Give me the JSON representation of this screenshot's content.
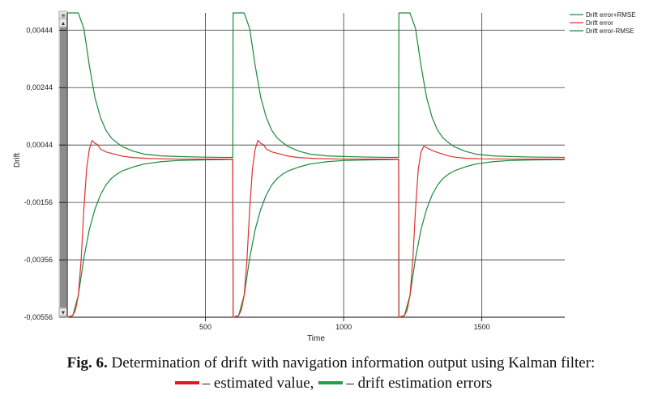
{
  "chart_data": {
    "type": "line",
    "xlabel": "Time",
    "ylabel": "Drift",
    "xlim": [
      0,
      1800
    ],
    "ylim": [
      -0.00556,
      0.00504
    ],
    "x_ticks": [
      500,
      1000,
      1500
    ],
    "x_tick_labels": [
      "500",
      "1000",
      "1500"
    ],
    "y_ticks": [
      0.00444,
      0.00244,
      0.00044,
      -0.00156,
      -0.00356,
      -0.00556
    ],
    "y_tick_labels": [
      "0,00444",
      "0,00244",
      "0,00044",
      "-0,00156",
      "-0,00356",
      "-0,00556"
    ],
    "grid": true,
    "legend_position": "top-right",
    "segment_starts": [
      0,
      600,
      1200
    ],
    "series": [
      {
        "name": "Drift error+RMSE",
        "color": "#1a8a3a",
        "x": [
          0,
          20,
          40,
          60,
          80,
          100,
          120,
          140,
          160,
          180,
          200,
          240,
          280,
          340,
          400,
          480,
          560,
          599,
          600,
          620,
          640,
          660,
          680,
          700,
          720,
          740,
          760,
          780,
          800,
          840,
          880,
          940,
          1000,
          1080,
          1160,
          1199,
          1200,
          1220,
          1240,
          1260,
          1280,
          1300,
          1320,
          1340,
          1360,
          1380,
          1400,
          1440,
          1480,
          1540,
          1600,
          1680,
          1800
        ],
        "y": [
          0.00504,
          0.00504,
          0.00504,
          0.0045,
          0.0032,
          0.0021,
          0.0014,
          0.00095,
          0.00068,
          0.00052,
          0.00038,
          0.00022,
          0.00012,
          6e-05,
          4e-05,
          2e-05,
          1e-05,
          1e-05,
          0.00504,
          0.00504,
          0.00504,
          0.0045,
          0.0032,
          0.0021,
          0.0014,
          0.00095,
          0.00068,
          0.00052,
          0.00038,
          0.00022,
          0.00012,
          6e-05,
          4e-05,
          2e-05,
          1e-05,
          1e-05,
          0.00504,
          0.00504,
          0.00504,
          0.0045,
          0.0032,
          0.0021,
          0.0014,
          0.00095,
          0.00068,
          0.00052,
          0.00038,
          0.00022,
          0.00012,
          6e-05,
          4e-05,
          2e-05,
          1e-05
        ]
      },
      {
        "name": "Drift error",
        "color": "#e03030",
        "x": [
          0,
          20,
          30,
          40,
          50,
          60,
          70,
          80,
          90,
          100,
          110,
          120,
          140,
          160,
          180,
          200,
          240,
          300,
          400,
          500,
          599,
          600,
          620,
          630,
          640,
          650,
          660,
          670,
          680,
          690,
          700,
          710,
          720,
          740,
          760,
          780,
          800,
          840,
          900,
          1000,
          1100,
          1199,
          1200,
          1220,
          1230,
          1240,
          1250,
          1260,
          1270,
          1280,
          1290,
          1300,
          1310,
          1320,
          1340,
          1360,
          1380,
          1400,
          1440,
          1500,
          1600,
          1700,
          1800
        ],
        "y": [
          -0.00556,
          -0.0055,
          -0.0053,
          -0.0048,
          -0.0036,
          -0.0018,
          -0.0004,
          0.0003,
          0.0006,
          0.0005,
          0.00045,
          0.0003,
          0.0002,
          0.00015,
          0.0001,
          5e-05,
          0.0,
          -3e-05,
          -5e-05,
          -5e-05,
          -5e-05,
          -0.00556,
          -0.0055,
          -0.0053,
          -0.0048,
          -0.0036,
          -0.0018,
          -0.0004,
          0.0003,
          0.0006,
          0.0005,
          0.00045,
          0.0003,
          0.0002,
          0.00015,
          0.0001,
          5e-05,
          0.0,
          -3e-05,
          -5e-05,
          -5e-05,
          -5e-05,
          -0.00556,
          -0.0055,
          -0.0053,
          -0.0048,
          -0.0036,
          -0.0018,
          -0.0004,
          0.0002,
          0.0004,
          0.00035,
          0.0003,
          0.00025,
          0.00018,
          0.00012,
          6e-05,
          2e-05,
          -2e-05,
          -4e-05,
          -5e-05,
          -5e-05,
          -5e-05
        ]
      },
      {
        "name": "Drift error-RMSE",
        "color": "#1a8a3a",
        "x": [
          0,
          20,
          40,
          60,
          80,
          100,
          120,
          140,
          160,
          180,
          200,
          240,
          280,
          340,
          400,
          480,
          560,
          599,
          600,
          620,
          640,
          660,
          680,
          700,
          720,
          740,
          760,
          780,
          800,
          840,
          880,
          940,
          1000,
          1080,
          1160,
          1199,
          1200,
          1220,
          1240,
          1260,
          1280,
          1300,
          1320,
          1340,
          1360,
          1380,
          1400,
          1440,
          1480,
          1540,
          1600,
          1680,
          1800
        ],
        "y": [
          -0.00556,
          -0.0055,
          -0.0048,
          -0.0035,
          -0.0025,
          -0.0018,
          -0.0013,
          -0.00095,
          -0.00072,
          -0.00057,
          -0.00046,
          -0.00032,
          -0.00022,
          -0.00014,
          -0.0001,
          -8e-05,
          -7e-05,
          -6e-05,
          -0.00556,
          -0.0055,
          -0.0048,
          -0.0035,
          -0.0025,
          -0.0018,
          -0.0013,
          -0.00095,
          -0.00072,
          -0.00057,
          -0.00046,
          -0.00032,
          -0.00022,
          -0.00014,
          -0.0001,
          -8e-05,
          -7e-05,
          -6e-05,
          -0.00556,
          -0.0055,
          -0.0048,
          -0.0035,
          -0.0025,
          -0.0018,
          -0.0013,
          -0.00095,
          -0.00072,
          -0.00057,
          -0.00046,
          -0.00032,
          -0.00022,
          -0.00014,
          -0.0001,
          -8e-05,
          -7e-05
        ]
      }
    ]
  },
  "scrollbar": {
    "up_glyph": "▲",
    "down_glyph": "▼",
    "top_glyph": "⊕"
  },
  "caption": {
    "line1_bold": "Fig. 6.",
    "line1_rest": " Determination of drift with navigation information output using Kalman filter:",
    "line2_part1": "– estimated value,",
    "line2_part2": "– drift estimation errors",
    "red_swatch_color": "#e01818",
    "green_swatch_color": "#22a040"
  }
}
